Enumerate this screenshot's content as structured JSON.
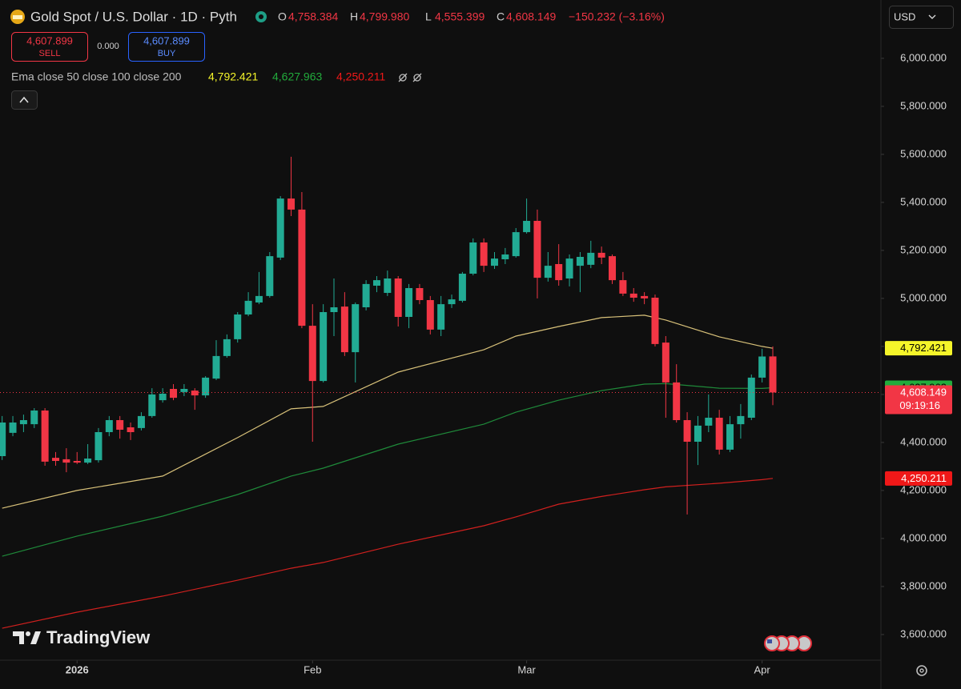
{
  "chart_data": {
    "type": "candlestick",
    "title": "Gold Spot / U.S. Dollar · 1D · Pyth",
    "ohlc_legend": [
      {
        "key": "O",
        "label": "4,758.384"
      },
      {
        "key": "H",
        "label": "4,799.980"
      },
      {
        "key": "L",
        "label": "4,555.399"
      },
      {
        "key": "C",
        "label": "4,608.149"
      }
    ],
    "change_label": "−150.232 (−3.16%)",
    "trade": {
      "sell_price": "4,607.899",
      "sell": "SELL",
      "spread": "0.000",
      "buy_price": "4,607.899",
      "buy": "BUY"
    },
    "indicator": "Ema close 50 close 100 close 200",
    "currency": "USD",
    "brand": "TradingView",
    "close_label": "4,608.149",
    "countdown": "09:19:16",
    "up_color": "#22ab94",
    "down_color": "#f23645",
    "xlim": [
      -0.2,
      82.1
    ],
    "xticks": [
      {
        "value": 7,
        "label": "2026"
      },
      {
        "value": 29,
        "label": "Feb"
      },
      {
        "value": 49,
        "label": "Mar"
      },
      {
        "value": 71,
        "label": "Apr"
      }
    ],
    "ylim": [
      3493,
      6243
    ],
    "yticks": [
      {
        "value": 3600,
        "label": "3,600.000"
      },
      {
        "value": 3800,
        "label": "3,800.000"
      },
      {
        "value": 4000,
        "label": "4,000.000"
      },
      {
        "value": 4200,
        "label": "4,200.000"
      },
      {
        "value": 4400,
        "label": "4,400.000"
      },
      {
        "value": 4600,
        "label": "4,600.000"
      },
      {
        "value": 4800,
        "label": "4,800.000"
      },
      {
        "value": 5000,
        "label": "5,000.000"
      },
      {
        "value": 5200,
        "label": "5,200.000"
      },
      {
        "value": 5400,
        "label": "5,400.000"
      },
      {
        "value": 5600,
        "label": "5,600.000"
      },
      {
        "value": 5800,
        "label": "5,800.000"
      },
      {
        "value": 6000,
        "label": "6,000.000"
      }
    ],
    "open": [
      4343,
      4440,
      4476,
      4476,
      4533,
      4336,
      4330,
      4323,
      4316,
      4326,
      4443,
      4493,
      4463,
      4460,
      4510,
      4576,
      4623,
      4610,
      4616,
      4596,
      4666,
      4760,
      4830,
      4933,
      4983,
      5010,
      5170,
      5416,
      5370,
      4886,
      4656,
      4943,
      4966,
      4776,
      4963,
      5053,
      5023,
      5083,
      4923,
      5043,
      4993,
      4870,
      4976,
      4990,
      5103,
      5233,
      5136,
      5163,
      5176,
      5276,
      5323,
      5086,
      5143,
      5083,
      5136,
      5140,
      5190,
      5176,
      5076,
      5020,
      5010,
      5003,
      4816,
      4650,
      4493,
      4403,
      4470,
      4503,
      4370,
      4476,
      4503,
      4670,
      4758.384
    ],
    "high": [
      4510,
      4510,
      4516,
      4543,
      4543,
      4360,
      4376,
      4360,
      4393,
      4460,
      4510,
      4510,
      4483,
      4526,
      4626,
      4626,
      4643,
      4643,
      4626,
      4676,
      4826,
      4850,
      4943,
      5026,
      5110,
      5193,
      5426,
      5590,
      5443,
      4976,
      4976,
      5083,
      5026,
      4983,
      5076,
      5093,
      5116,
      5093,
      5060,
      5060,
      5010,
      5010,
      5016,
      5110,
      5250,
      5250,
      5193,
      5210,
      5293,
      5416,
      5370,
      5193,
      5226,
      5183,
      5193,
      5240,
      5216,
      5183,
      5110,
      5043,
      5026,
      5016,
      4843,
      4726,
      4526,
      4510,
      4600,
      4536,
      4510,
      4560,
      4683,
      4790,
      4799.98
    ],
    "low": [
      4327,
      4426,
      4443,
      4460,
      4303,
      4303,
      4276,
      4310,
      4310,
      4316,
      4426,
      4416,
      4410,
      4450,
      4503,
      4566,
      4576,
      4593,
      4536,
      4586,
      4660,
      4753,
      4816,
      4926,
      4976,
      5003,
      5160,
      5343,
      4876,
      4403,
      4650,
      4843,
      4760,
      4650,
      4950,
      5026,
      5010,
      4883,
      4876,
      4976,
      4850,
      4843,
      4960,
      4983,
      5096,
      5110,
      5123,
      5143,
      5170,
      5270,
      5000,
      5070,
      5053,
      5050,
      5026,
      5126,
      5143,
      5060,
      5010,
      4986,
      4976,
      4800,
      4503,
      4483,
      4100,
      4306,
      4443,
      4350,
      4360,
      4416,
      4493,
      4650,
      4555.399
    ],
    "close": [
      4483,
      4483,
      4493,
      4533,
      4320,
      4323,
      4316,
      4316,
      4333,
      4443,
      4493,
      4453,
      4443,
      4510,
      4600,
      4603,
      4586,
      4623,
      4596,
      4670,
      4760,
      4830,
      4933,
      4990,
      5010,
      5176,
      5416,
      5370,
      4886,
      4656,
      4943,
      4963,
      4776,
      4976,
      5060,
      5076,
      5083,
      4923,
      5043,
      4993,
      4870,
      4976,
      4996,
      5103,
      5233,
      5136,
      5166,
      5183,
      5276,
      5323,
      5086,
      5136,
      5076,
      5166,
      5173,
      5190,
      5170,
      5076,
      5020,
      5003,
      5000,
      4810,
      4650,
      4493,
      4403,
      4470,
      4503,
      4370,
      4476,
      4510,
      4670,
      4758,
      4608.149
    ],
    "series": [
      {
        "color": "#d9c27a",
        "label_color": "#f5f52a",
        "label_text_color": "#000000",
        "last_label": "4,792.421",
        "x": [
          0,
          7,
          15,
          22,
          27,
          30,
          37,
          45,
          48,
          52,
          56,
          60,
          62,
          67,
          71,
          72
        ],
        "values": [
          4126,
          4200,
          4260,
          4420,
          4540,
          4550,
          4693,
          4786,
          4843,
          4883,
          4920,
          4930,
          4910,
          4840,
          4800,
          4792.421
        ]
      },
      {
        "color": "#1f8a3a",
        "label_color": "#22ab3c",
        "label_text_color": "#000000",
        "last_label": "4,627.963",
        "x": [
          0,
          7,
          15,
          22,
          27,
          30,
          37,
          45,
          48,
          52,
          56,
          60,
          62,
          67,
          71,
          72
        ],
        "values": [
          3926,
          4010,
          4093,
          4183,
          4260,
          4293,
          4393,
          4476,
          4526,
          4576,
          4616,
          4643,
          4645,
          4626,
          4625,
          4627.963
        ]
      },
      {
        "color": "#d0201e",
        "label_color": "#f01818",
        "label_text_color": "#ffffff",
        "last_label": "4,250.211",
        "x": [
          0,
          7,
          15,
          22,
          27,
          30,
          37,
          45,
          48,
          52,
          56,
          60,
          62,
          67,
          71,
          72
        ],
        "values": [
          3626,
          3693,
          3760,
          3826,
          3876,
          3900,
          3976,
          4053,
          4090,
          4143,
          4175,
          4203,
          4215,
          4230,
          4245,
          4250.211
        ]
      }
    ]
  }
}
